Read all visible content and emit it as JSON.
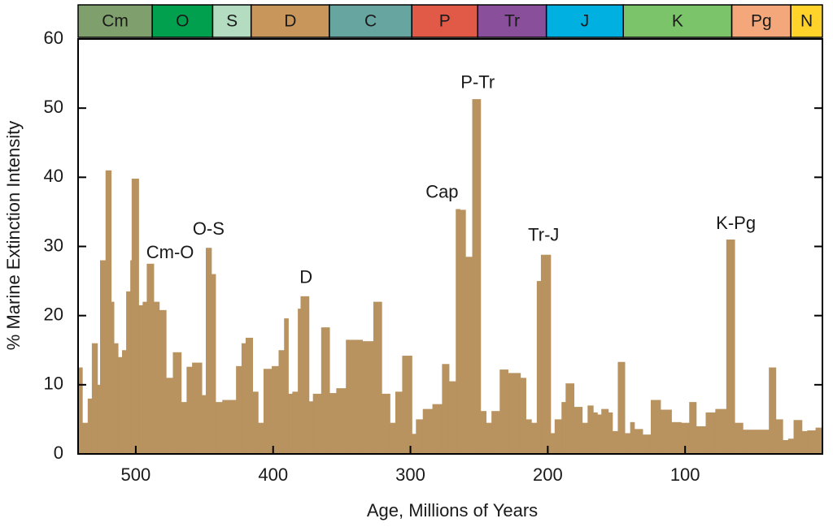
{
  "chart_data": {
    "type": "histogram",
    "xlabel": "Age, Millions of Years",
    "ylabel": "% Marine Extinction Intensity",
    "color": "#b8925f",
    "xlim": [
      542,
      0
    ],
    "ylim": [
      0,
      60
    ],
    "xticks": [
      500,
      400,
      300,
      200,
      100
    ],
    "yticks": [
      0,
      10,
      20,
      30,
      40,
      50,
      60
    ],
    "bins": [
      542,
      539,
      535,
      532,
      528,
      526,
      522,
      518,
      516,
      513,
      510,
      507,
      504,
      503,
      498,
      495,
      492,
      487,
      483,
      478,
      473,
      467,
      463,
      459,
      452,
      449,
      445,
      442,
      437,
      427,
      423,
      420,
      415,
      411,
      407,
      401,
      396,
      392,
      389,
      386,
      382,
      380,
      374,
      371,
      365,
      359,
      354,
      347,
      335,
      327,
      321,
      315,
      311,
      306,
      299,
      296,
      291,
      284,
      277,
      272,
      267,
      264,
      260,
      255,
      249,
      245,
      241,
      235,
      229,
      220,
      216,
      212,
      208,
      205,
      198,
      195,
      190,
      187,
      181,
      175,
      171,
      167,
      164,
      161,
      156,
      153,
      149,
      144,
      140,
      137,
      131,
      125,
      118,
      110,
      103,
      97,
      92,
      85,
      78,
      70,
      64,
      58,
      55,
      39,
      34,
      29,
      25,
      21,
      15,
      11,
      5,
      0
    ],
    "counts": [
      12.5,
      4.5,
      8,
      16,
      10,
      28,
      41,
      22,
      16,
      14,
      15,
      23.5,
      28,
      39.8,
      21.5,
      22,
      27.5,
      22,
      20.8,
      11,
      14.7,
      7.5,
      12.6,
      13.2,
      8.5,
      29.8,
      26,
      7.5,
      7.8,
      12.7,
      16,
      16.8,
      9,
      4.5,
      12.3,
      12.7,
      15,
      19.6,
      8.7,
      9,
      21,
      22.8,
      7.6,
      8.7,
      18.3,
      8.8,
      9.5,
      16.5,
      16.3,
      22,
      8.7,
      4.5,
      9,
      14.2,
      2.9,
      5,
      6.5,
      7.2,
      13,
      10.5,
      35.4,
      35.3,
      28.5,
      51.3,
      6.2,
      4.5,
      6.2,
      12.2,
      11.7,
      11,
      5,
      4.5,
      25,
      28.8,
      3,
      5,
      7.5,
      10.2,
      6.8,
      4.5,
      7,
      6,
      5.7,
      6.5,
      6,
      3.3,
      13.3,
      3,
      4.6,
      3.6,
      2.8,
      7.8,
      6.4,
      4.6,
      4.5,
      7.5,
      4,
      6,
      6.5,
      31,
      4.5,
      3.5,
      3.5,
      12.5,
      5,
      2,
      2.2,
      4.9,
      3.3,
      3.4,
      3.8
    ],
    "periods": [
      {
        "label": "Cm",
        "start": 542,
        "end": 488,
        "color": "#7fa06c"
      },
      {
        "label": "O",
        "start": 488,
        "end": 444,
        "color": "#00a04e"
      },
      {
        "label": "S",
        "start": 444,
        "end": 416,
        "color": "#b3dcc0"
      },
      {
        "label": "D",
        "start": 416,
        "end": 359,
        "color": "#c8955a"
      },
      {
        "label": "C",
        "start": 359,
        "end": 299,
        "color": "#67a6a0"
      },
      {
        "label": "P",
        "start": 299,
        "end": 251,
        "color": "#e05a47"
      },
      {
        "label": "Tr",
        "start": 251,
        "end": 201,
        "color": "#8a4f9a"
      },
      {
        "label": "J",
        "start": 201,
        "end": 145,
        "color": "#00b0e0"
      },
      {
        "label": "K",
        "start": 145,
        "end": 66,
        "color": "#7cc46a"
      },
      {
        "label": "Pg",
        "start": 66,
        "end": 23,
        "color": "#f4a77a"
      },
      {
        "label": "N",
        "start": 23,
        "end": 0,
        "color": "#ffd32a"
      }
    ],
    "annotations": [
      {
        "text": "Cm-O",
        "x": 475,
        "y": 29
      },
      {
        "text": "O-S",
        "x": 447,
        "y": 32.4
      },
      {
        "text": "D",
        "x": 376,
        "y": 25.4
      },
      {
        "text": "Cap",
        "x": 277,
        "y": 37.7
      },
      {
        "text": "P-Tr",
        "x": 251,
        "y": 53.6
      },
      {
        "text": "Tr-J",
        "x": 203,
        "y": 31.5
      },
      {
        "text": "K-Pg",
        "x": 63,
        "y": 33.2
      }
    ]
  }
}
